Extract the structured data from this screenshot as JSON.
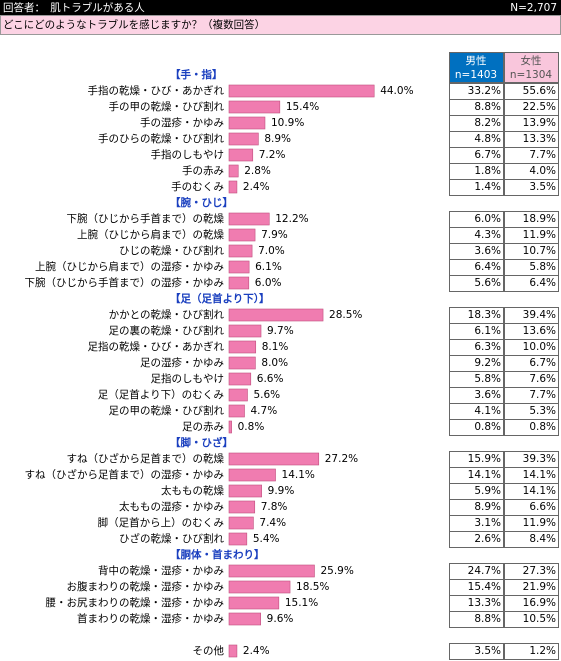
{
  "header": {
    "respondents": "回答者：　肌トラブルがある人",
    "n": "N=2,707",
    "question": "どこにどのようなトラブルを感じますか？（複数回答）"
  },
  "chart_data": {
    "type": "bar",
    "color": "#f07cb0",
    "columns": {
      "male": "男性",
      "male_n": "n=1403",
      "female": "女性",
      "female_n": "n=1304"
    },
    "groups": [
      {
        "label": "【手・指】",
        "items": [
          {
            "name": "手指の乾燥・ひび・あかぎれ",
            "value": 44.0,
            "value_label": "44.0%",
            "male": "33.2%",
            "female": "55.6%"
          },
          {
            "name": "手の甲の乾燥・ひび割れ",
            "value": 15.4,
            "value_label": "15.4%",
            "male": "8.8%",
            "female": "22.5%"
          },
          {
            "name": "手の湿疹・かゆみ",
            "value": 10.9,
            "value_label": "10.9%",
            "male": "8.2%",
            "female": "13.9%"
          },
          {
            "name": "手のひらの乾燥・ひび割れ",
            "value": 8.9,
            "value_label": "8.9%",
            "male": "4.8%",
            "female": "13.3%"
          },
          {
            "name": "手指のしもやけ",
            "value": 7.2,
            "value_label": "7.2%",
            "male": "6.7%",
            "female": "7.7%"
          },
          {
            "name": "手の赤み",
            "value": 2.8,
            "value_label": "2.8%",
            "male": "1.8%",
            "female": "4.0%"
          },
          {
            "name": "手のむくみ",
            "value": 2.4,
            "value_label": "2.4%",
            "male": "1.4%",
            "female": "3.5%"
          }
        ]
      },
      {
        "label": "【腕・ひじ】",
        "items": [
          {
            "name": "下腕（ひじから手首まで）の乾燥",
            "value": 12.2,
            "value_label": "12.2%",
            "male": "6.0%",
            "female": "18.9%"
          },
          {
            "name": "上腕（ひじから肩まで）の乾燥",
            "value": 7.9,
            "value_label": "7.9%",
            "male": "4.3%",
            "female": "11.9%"
          },
          {
            "name": "ひじの乾燥・ひび割れ",
            "value": 7.0,
            "value_label": "7.0%",
            "male": "3.6%",
            "female": "10.7%"
          },
          {
            "name": "上腕（ひじから肩まで）の湿疹・かゆみ",
            "value": 6.1,
            "value_label": "6.1%",
            "male": "6.4%",
            "female": "5.8%"
          },
          {
            "name": "下腕（ひじから手首まで）の湿疹・かゆみ",
            "value": 6.0,
            "value_label": "6.0%",
            "male": "5.6%",
            "female": "6.4%"
          }
        ]
      },
      {
        "label": "【足（足首より下）】",
        "items": [
          {
            "name": "かかとの乾燥・ひび割れ",
            "value": 28.5,
            "value_label": "28.5%",
            "male": "18.3%",
            "female": "39.4%"
          },
          {
            "name": "足の裏の乾燥・ひび割れ",
            "value": 9.7,
            "value_label": "9.7%",
            "male": "6.1%",
            "female": "13.6%"
          },
          {
            "name": "足指の乾燥・ひび・あかぎれ",
            "value": 8.1,
            "value_label": "8.1%",
            "male": "6.3%",
            "female": "10.0%"
          },
          {
            "name": "足の湿疹・かゆみ",
            "value": 8.0,
            "value_label": "8.0%",
            "male": "9.2%",
            "female": "6.7%"
          },
          {
            "name": "足指のしもやけ",
            "value": 6.6,
            "value_label": "6.6%",
            "male": "5.8%",
            "female": "7.6%"
          },
          {
            "name": "足（足首より下）のむくみ",
            "value": 5.6,
            "value_label": "5.6%",
            "male": "3.6%",
            "female": "7.7%"
          },
          {
            "name": "足の甲の乾燥・ひび割れ",
            "value": 4.7,
            "value_label": "4.7%",
            "male": "4.1%",
            "female": "5.3%"
          },
          {
            "name": "足の赤み",
            "value": 0.8,
            "value_label": "0.8%",
            "male": "0.8%",
            "female": "0.8%"
          }
        ]
      },
      {
        "label": "【脚・ひざ】",
        "items": [
          {
            "name": "すね（ひざから足首まで）の乾燥",
            "value": 27.2,
            "value_label": "27.2%",
            "male": "15.9%",
            "female": "39.3%"
          },
          {
            "name": "すね（ひざから足首まで）の湿疹・かゆみ",
            "value": 14.1,
            "value_label": "14.1%",
            "male": "14.1%",
            "female": "14.1%"
          },
          {
            "name": "太ももの乾燥",
            "value": 9.9,
            "value_label": "9.9%",
            "male": "5.9%",
            "female": "14.1%"
          },
          {
            "name": "太ももの湿疹・かゆみ",
            "value": 7.8,
            "value_label": "7.8%",
            "male": "8.9%",
            "female": "6.6%"
          },
          {
            "name": "脚（足首から上）のむくみ",
            "value": 7.4,
            "value_label": "7.4%",
            "male": "3.1%",
            "female": "11.9%"
          },
          {
            "name": "ひざの乾燥・ひび割れ",
            "value": 5.4,
            "value_label": "5.4%",
            "male": "2.6%",
            "female": "8.4%"
          }
        ]
      },
      {
        "label": "【胴体・首まわり】",
        "items": [
          {
            "name": "背中の乾燥・湿疹・かゆみ",
            "value": 25.9,
            "value_label": "25.9%",
            "male": "24.7%",
            "female": "27.3%"
          },
          {
            "name": "お腹まわりの乾燥・湿疹・かゆみ",
            "value": 18.5,
            "value_label": "18.5%",
            "male": "15.4%",
            "female": "21.9%"
          },
          {
            "name": "腰・お尻まわりの乾燥・湿疹・かゆみ",
            "value": 15.1,
            "value_label": "15.1%",
            "male": "13.3%",
            "female": "16.9%"
          },
          {
            "name": "首まわりの乾燥・湿疹・かゆみ",
            "value": 9.6,
            "value_label": "9.6%",
            "male": "8.8%",
            "female": "10.5%"
          }
        ]
      }
    ],
    "other": {
      "name": "その他",
      "value": 2.4,
      "value_label": "2.4%",
      "male": "3.5%",
      "female": "1.2%"
    }
  }
}
